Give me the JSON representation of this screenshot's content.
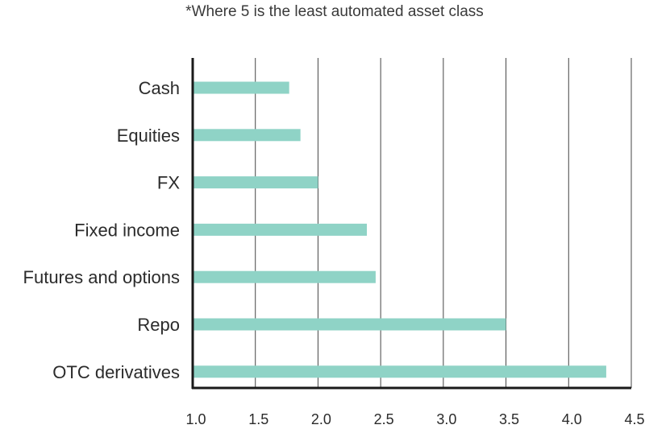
{
  "chart_data": {
    "type": "bar",
    "orientation": "horizontal",
    "subtitle": "*Where 5 is the least automated asset class",
    "categories": [
      "Cash",
      "Equities",
      "FX",
      "Fixed income",
      "Futures and options",
      "Repo",
      "OTC derivatives"
    ],
    "values": [
      1.77,
      1.86,
      2.0,
      2.39,
      2.46,
      3.5,
      4.3
    ],
    "xlim": [
      1.0,
      4.5
    ],
    "xticks": [
      "1.0",
      "1.5",
      "2.0",
      "2.5",
      "3.0",
      "3.5",
      "4.0",
      "4.5"
    ],
    "grid": "vertical",
    "bar_color": "#8fd3c6",
    "axis_color": "#1a1a1a",
    "grid_color": "#444444"
  }
}
